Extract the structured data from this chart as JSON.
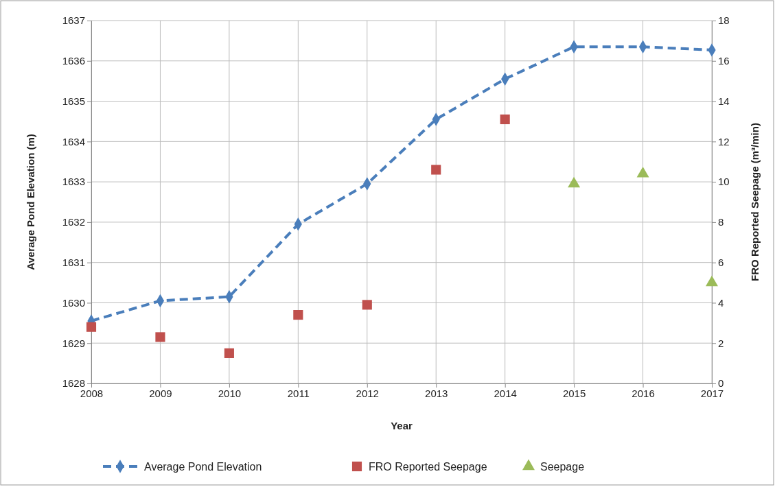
{
  "chart_data": {
    "type": "line",
    "xlabel": "Year",
    "ylabel": "Average Pond Elevation (m)",
    "y2label": "FRO Reported Seepage (m³/min)",
    "x": [
      2008,
      2009,
      2010,
      2011,
      2012,
      2013,
      2014,
      2015,
      2016,
      2017
    ],
    "xlim": [
      2008,
      2017
    ],
    "xticks": [
      2008,
      2009,
      2010,
      2011,
      2012,
      2013,
      2014,
      2015,
      2016,
      2017
    ],
    "ylim": [
      1628,
      1637
    ],
    "yticks": [
      1628,
      1629,
      1630,
      1631,
      1632,
      1633,
      1634,
      1635,
      1636,
      1637
    ],
    "y2lim": [
      0,
      18
    ],
    "y2ticks": [
      0,
      2,
      4,
      6,
      8,
      10,
      12,
      14,
      16,
      18
    ],
    "grid": true,
    "legend": "bottom",
    "series": [
      {
        "name": "Average Pond Elevation",
        "color": "#4a7ebb",
        "marker": "diamond",
        "line_style": "dashed",
        "values": [
          1629.55,
          1630.05,
          1630.15,
          1631.95,
          1632.95,
          1634.55,
          1635.55,
          1636.35,
          1636.35,
          1636.27
        ]
      },
      {
        "name": "FRO Reported Seepage",
        "type": "scatter",
        "axis": "y2",
        "color": "#c0504d",
        "marker": "square",
        "values": [
          2.8,
          2.3,
          1.5,
          3.4,
          3.9,
          10.6,
          13.1,
          null,
          null,
          null
        ]
      },
      {
        "name": "Seepage",
        "type": "scatter",
        "axis": "y2",
        "color": "#9bbb59",
        "marker": "triangle",
        "values": [
          null,
          null,
          null,
          null,
          null,
          null,
          null,
          9.9,
          10.4,
          5.0
        ]
      }
    ]
  }
}
